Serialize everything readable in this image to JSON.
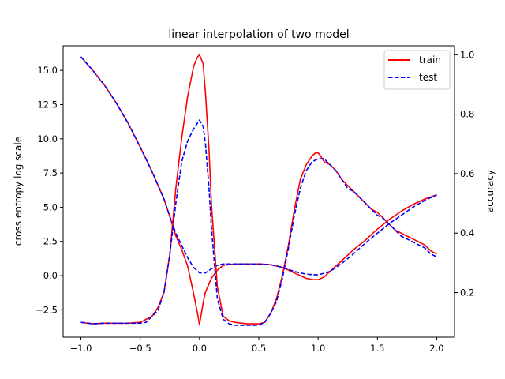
{
  "chart_data": {
    "type": "line",
    "title": "linear interpolation of two model",
    "xlabel": "",
    "ylabel_left": "cross entropy log scale",
    "ylabel_right": "accuracy",
    "xlim": [
      -1.15,
      2.15
    ],
    "ylim_left": [
      -4.5,
      16.8
    ],
    "ylim_right": [
      0.05,
      1.03
    ],
    "xticks": [
      -1.0,
      -0.5,
      0.0,
      0.5,
      1.0,
      1.5,
      2.0
    ],
    "xtick_labels": [
      "−1.0",
      "−0.5",
      "0.0",
      "0.5",
      "1.0",
      "1.5",
      "2.0"
    ],
    "yticks_left": [
      -2.5,
      0.0,
      2.5,
      5.0,
      7.5,
      10.0,
      12.5,
      15.0
    ],
    "ytick_labels_left": [
      "−2.5",
      "0.0",
      "2.5",
      "5.0",
      "7.5",
      "10.0",
      "12.5",
      "15.0"
    ],
    "yticks_right": [
      0.2,
      0.4,
      0.6,
      0.8,
      1.0
    ],
    "ytick_labels_right": [
      "0.2",
      "0.4",
      "0.6",
      "0.8",
      "1.0"
    ],
    "grid": false,
    "legend_position": "top-right",
    "colors": {
      "train": "#ff0000",
      "test": "#0000ff"
    },
    "legend": [
      {
        "label": "train",
        "color": "#ff0000",
        "dash": "solid"
      },
      {
        "label": "test",
        "color": "#0000ff",
        "dash": "dashed"
      }
    ],
    "series": [
      {
        "name": "train",
        "metric": "cross entropy",
        "axis": "left",
        "color": "#ff0000",
        "dash": "solid",
        "x": [
          -1.0,
          -0.9,
          -0.8,
          -0.7,
          -0.6,
          -0.5,
          -0.4,
          -0.3,
          -0.25,
          -0.2,
          -0.15,
          -0.1,
          -0.05,
          -0.02,
          0.0,
          0.03,
          0.05,
          0.1,
          0.15,
          0.2,
          0.3,
          0.4,
          0.5,
          0.6,
          0.7,
          0.8,
          0.9,
          0.95,
          1.0,
          1.05,
          1.1,
          1.2,
          1.3,
          1.4,
          1.5,
          1.6,
          1.7,
          1.8,
          1.9,
          2.0
        ],
        "y": [
          16.0,
          15.0,
          13.9,
          12.6,
          11.1,
          9.4,
          7.6,
          5.6,
          4.3,
          2.9,
          1.9,
          0.7,
          -1.3,
          -2.6,
          -3.6,
          -2.0,
          -1.2,
          -0.2,
          0.4,
          0.75,
          0.85,
          0.85,
          0.85,
          0.8,
          0.6,
          0.2,
          -0.2,
          -0.3,
          -0.3,
          -0.1,
          0.3,
          1.1,
          1.9,
          2.6,
          3.4,
          4.1,
          4.7,
          5.2,
          5.6,
          5.9
        ]
      },
      {
        "name": "test",
        "metric": "cross entropy",
        "axis": "left",
        "color": "#0000ff",
        "dash": "dashed",
        "x": [
          -1.0,
          -0.9,
          -0.8,
          -0.7,
          -0.6,
          -0.5,
          -0.4,
          -0.3,
          -0.25,
          -0.2,
          -0.15,
          -0.1,
          -0.05,
          0.0,
          0.05,
          0.1,
          0.15,
          0.2,
          0.3,
          0.4,
          0.5,
          0.6,
          0.7,
          0.8,
          0.9,
          1.0,
          1.1,
          1.2,
          1.3,
          1.4,
          1.5,
          1.6,
          1.7,
          1.8,
          1.9,
          2.0
        ],
        "y": [
          16.0,
          15.0,
          13.9,
          12.6,
          11.1,
          9.4,
          7.6,
          5.6,
          4.3,
          3.1,
          2.2,
          1.3,
          0.6,
          0.2,
          0.2,
          0.5,
          0.75,
          0.85,
          0.85,
          0.85,
          0.85,
          0.8,
          0.6,
          0.3,
          0.1,
          0.05,
          0.3,
          0.9,
          1.6,
          2.4,
          3.1,
          3.8,
          4.4,
          5.0,
          5.5,
          5.9
        ]
      },
      {
        "name": "train",
        "metric": "accuracy",
        "axis": "right",
        "color": "#ff0000",
        "dash": "solid",
        "x": [
          -1.0,
          -0.9,
          -0.8,
          -0.7,
          -0.6,
          -0.5,
          -0.45,
          -0.4,
          -0.35,
          -0.3,
          -0.25,
          -0.2,
          -0.15,
          -0.1,
          -0.05,
          -0.02,
          0.0,
          0.03,
          0.05,
          0.08,
          0.1,
          0.15,
          0.2,
          0.25,
          0.3,
          0.4,
          0.5,
          0.55,
          0.6,
          0.65,
          0.7,
          0.75,
          0.8,
          0.85,
          0.9,
          0.95,
          0.98,
          1.0,
          1.02,
          1.05,
          1.1,
          1.15,
          1.2,
          1.25,
          1.3,
          1.35,
          1.4,
          1.45,
          1.5,
          1.55,
          1.6,
          1.65,
          1.7,
          1.75,
          1.8,
          1.85,
          1.9,
          1.95,
          2.0
        ],
        "y": [
          0.1,
          0.095,
          0.097,
          0.097,
          0.097,
          0.1,
          0.11,
          0.12,
          0.15,
          0.2,
          0.33,
          0.55,
          0.72,
          0.86,
          0.96,
          0.99,
          1.0,
          0.97,
          0.87,
          0.68,
          0.5,
          0.22,
          0.12,
          0.105,
          0.1,
          0.095,
          0.095,
          0.1,
          0.13,
          0.18,
          0.26,
          0.36,
          0.48,
          0.58,
          0.63,
          0.66,
          0.67,
          0.67,
          0.66,
          0.64,
          0.63,
          0.61,
          0.58,
          0.56,
          0.54,
          0.52,
          0.5,
          0.48,
          0.47,
          0.45,
          0.43,
          0.41,
          0.4,
          0.39,
          0.38,
          0.37,
          0.36,
          0.34,
          0.33
        ]
      },
      {
        "name": "test",
        "metric": "accuracy",
        "axis": "right",
        "color": "#0000ff",
        "dash": "dashed",
        "x": [
          -1.0,
          -0.9,
          -0.8,
          -0.7,
          -0.6,
          -0.5,
          -0.45,
          -0.4,
          -0.35,
          -0.3,
          -0.25,
          -0.2,
          -0.15,
          -0.1,
          -0.05,
          0.0,
          0.03,
          0.05,
          0.08,
          0.1,
          0.15,
          0.2,
          0.25,
          0.3,
          0.4,
          0.5,
          0.55,
          0.6,
          0.65,
          0.7,
          0.75,
          0.8,
          0.85,
          0.9,
          0.95,
          1.0,
          1.05,
          1.1,
          1.15,
          1.2,
          1.25,
          1.3,
          1.35,
          1.4,
          1.45,
          1.5,
          1.55,
          1.6,
          1.65,
          1.7,
          1.75,
          1.8,
          1.85,
          1.9,
          1.95,
          2.0
        ],
        "y": [
          0.1,
          0.095,
          0.097,
          0.097,
          0.097,
          0.097,
          0.1,
          0.12,
          0.14,
          0.2,
          0.33,
          0.5,
          0.64,
          0.71,
          0.75,
          0.78,
          0.76,
          0.7,
          0.55,
          0.42,
          0.18,
          0.11,
          0.095,
          0.09,
          0.09,
          0.09,
          0.1,
          0.13,
          0.17,
          0.25,
          0.35,
          0.46,
          0.55,
          0.61,
          0.64,
          0.65,
          0.65,
          0.63,
          0.61,
          0.58,
          0.55,
          0.54,
          0.52,
          0.5,
          0.48,
          0.46,
          0.45,
          0.43,
          0.41,
          0.39,
          0.38,
          0.37,
          0.36,
          0.35,
          0.33,
          0.32
        ]
      }
    ]
  }
}
